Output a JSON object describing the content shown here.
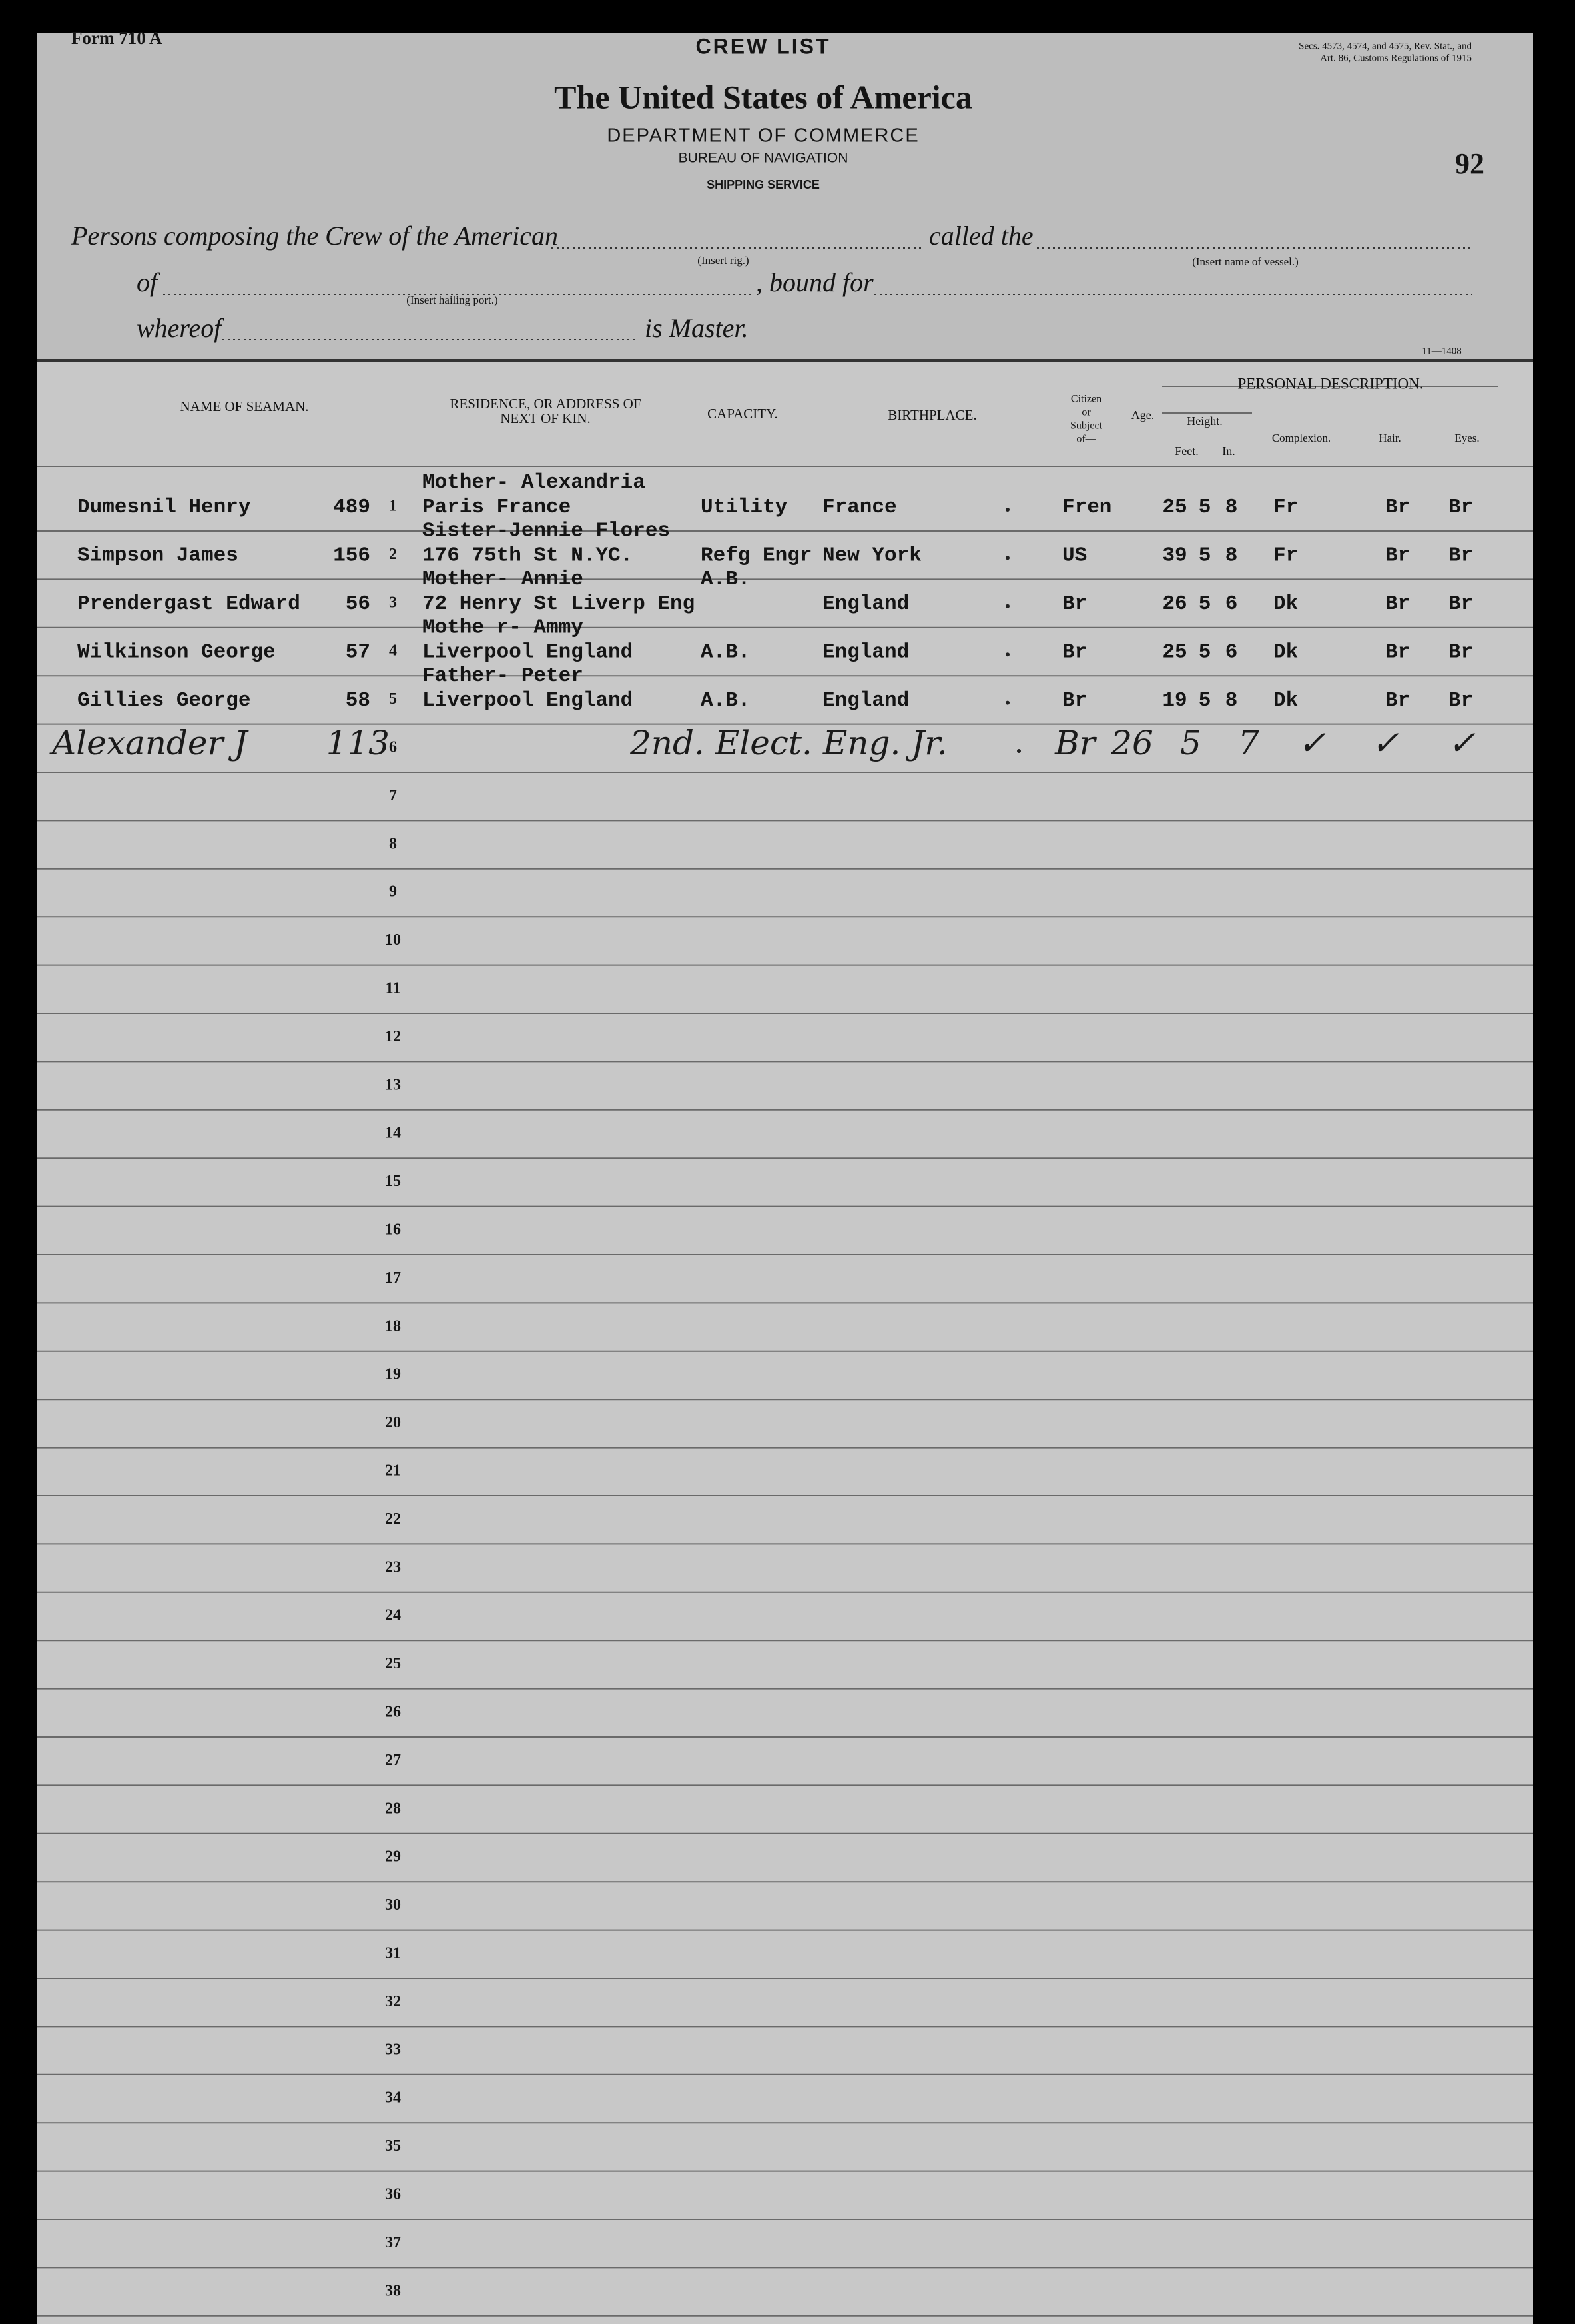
{
  "header": {
    "form_no": "Form 710 A",
    "form_title": "CREW LIST",
    "statute": [
      "Secs. 4573, 4574, and 4575, Rev. Stat., and",
      "Art. 86, Customs Regulations of 1915"
    ],
    "country": "The United States of America",
    "department": "DEPARTMENT OF COMMERCE",
    "bureau": "BUREAU OF NAVIGATION",
    "service": "SHIPPING SERVICE",
    "page_number": "92"
  },
  "preamble": {
    "line1": "Persons composing the Crew of the American",
    "rig_hint": "(Insert rig.)",
    "called": "called the",
    "vessel_hint": "(Insert name of vessel.)",
    "of": "of",
    "port_hint": "(Insert hailing port.)",
    "bound": ", bound for",
    "whereof": "whereof",
    "master": "is Master.",
    "code": "11—1408"
  },
  "columns": {
    "name": "NAME OF SEAMAN.",
    "residence": [
      "RESIDENCE, OR ADDRESS OF",
      "NEXT OF KIN."
    ],
    "capacity": "CAPACITY.",
    "birthplace": "BIRTHPLACE.",
    "citizen": [
      "Citizen",
      "or",
      "Subject",
      "of—"
    ],
    "age": "Age.",
    "personal": "PERSONAL DESCRIPTION.",
    "height": "Height.",
    "feet": "Feet.",
    "inches": "In.",
    "complexion": "Complexion.",
    "hair": "Hair.",
    "eyes": "Eyes."
  },
  "rows": [
    {
      "name": "Dumesnil Henry",
      "id": "489",
      "kin_above": "Mother- Alexandria",
      "kin": "Paris France",
      "capacity": "Utility",
      "birthplace": "France",
      "citizen": "Fren",
      "age": "25",
      "feet": "5",
      "inches": "8",
      "complexion": "Fr",
      "hair": "Br",
      "eyes": "Br"
    },
    {
      "name": "Simpson James",
      "id": "156",
      "kin_above": "Sister-Jennie Flores",
      "kin": "176 75th St N.YC.",
      "capacity": "Refg Engr",
      "birthplace": "New York",
      "citizen": "US",
      "age": "39",
      "feet": "5",
      "inches": "8",
      "complexion": "Fr",
      "hair": "Br",
      "eyes": "Br"
    },
    {
      "name": "Prendergast Edward",
      "id": "56",
      "kin_above": "Mother- Annie",
      "capacity_above": "A.B.",
      "kin": "72 Henry St Liverp Eng",
      "birthplace": "England",
      "citizen": "Br",
      "age": "26",
      "feet": "5",
      "inches": "6",
      "complexion": "Dk",
      "hair": "Br",
      "eyes": "Br"
    },
    {
      "name": "Wilkinson George",
      "id": "57",
      "kin_above": "Mothe r- Ammy",
      "kin": "Liverpool England",
      "capacity": "A.B.",
      "birthplace": "England",
      "citizen": "Br",
      "age": "25",
      "feet": "5",
      "inches": "6",
      "complexion": "Dk",
      "hair": "Br",
      "eyes": "Br"
    },
    {
      "name": "Gillies George",
      "id": "58",
      "kin_above": "Father- Peter",
      "kin": "Liverpool England",
      "capacity": "A.B.",
      "birthplace": "England",
      "citizen": "Br",
      "age": "19",
      "feet": "5",
      "inches": "8",
      "complexion": "Dk",
      "hair": "Br",
      "eyes": "Br"
    }
  ],
  "handwritten_rows": [
    {
      "name": "Alexander J",
      "id": "113",
      "capacity": "2nd. Elect. Eng. Jr.",
      "citizen": "Br",
      "age": "26",
      "feet": "5",
      "inches": "7",
      "complexion": "✓",
      "hair": "✓",
      "eyes": "✓"
    }
  ],
  "line_numbers": [
    1,
    2,
    3,
    4,
    5,
    6,
    7,
    8,
    9,
    10,
    11,
    12,
    13,
    14,
    15,
    16,
    17,
    18,
    19,
    20,
    21,
    22,
    23,
    24,
    25,
    26,
    27,
    28,
    29,
    30,
    31,
    32,
    33,
    34,
    35,
    36,
    37,
    38
  ]
}
